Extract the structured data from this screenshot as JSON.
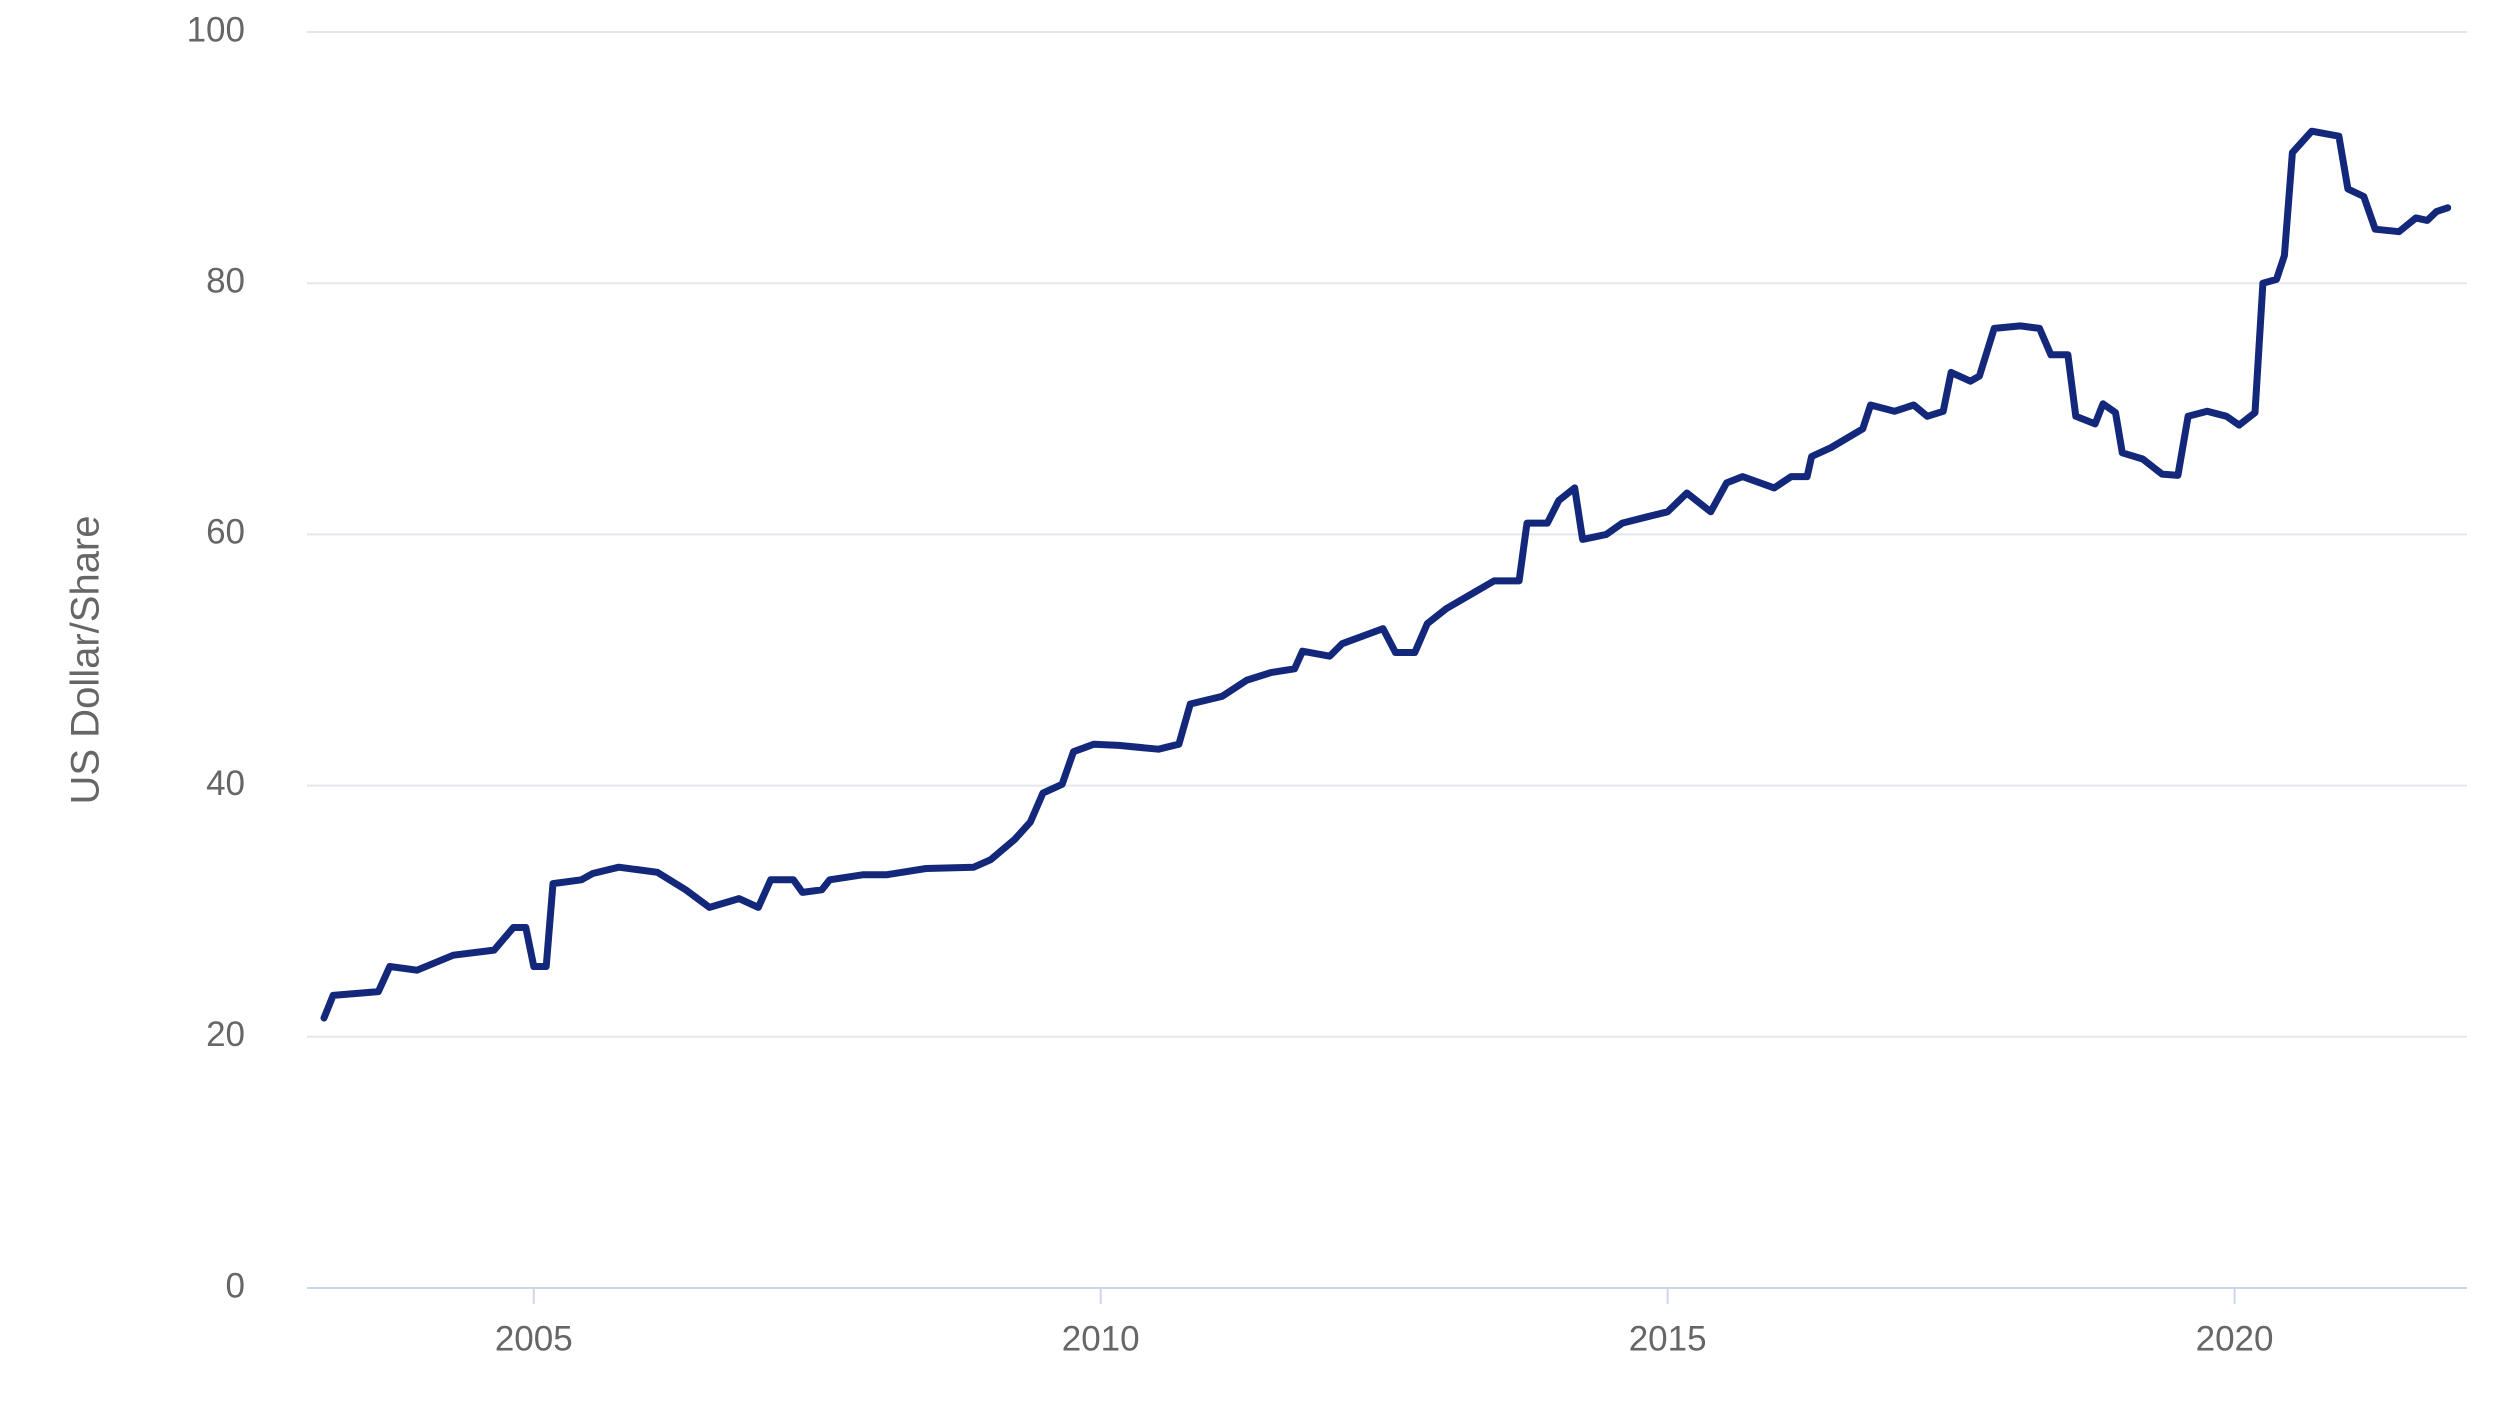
{
  "chart_data": {
    "type": "line",
    "y_label": "US Dollar/Share",
    "color": "#13287a",
    "xlim": [
      2003,
      2022.05
    ],
    "xticks": [
      2005,
      2010,
      2015,
      2020
    ],
    "ylim": [
      0,
      100
    ],
    "yticks": [
      0,
      20,
      40,
      60,
      80,
      100
    ],
    "grid": true,
    "x": [
      2003.15,
      2003.23,
      2003.63,
      2003.73,
      2003.97,
      2004.29,
      2004.65,
      2004.82,
      2004.93,
      2005.0,
      2005.11,
      2005.17,
      2005.42,
      2005.52,
      2005.75,
      2006.09,
      2006.34,
      2006.55,
      2006.81,
      2006.98,
      2007.09,
      2007.29,
      2007.37,
      2007.54,
      2007.61,
      2007.9,
      2008.11,
      2008.46,
      2008.88,
      2009.03,
      2009.24,
      2009.38,
      2009.49,
      2009.66,
      2009.76,
      2009.94,
      2010.16,
      2010.51,
      2010.69,
      2010.79,
      2011.07,
      2011.29,
      2011.5,
      2011.71,
      2011.78,
      2012.02,
      2012.13,
      2012.49,
      2012.6,
      2012.77,
      2012.88,
      2013.05,
      2013.26,
      2013.47,
      2013.69,
      2013.76,
      2013.94,
      2014.04,
      2014.18,
      2014.25,
      2014.46,
      2014.6,
      2014.82,
      2015.0,
      2015.17,
      2015.38,
      2015.52,
      2015.66,
      2015.94,
      2016.09,
      2016.23,
      2016.27,
      2016.44,
      2016.72,
      2016.79,
      2017.0,
      2017.17,
      2017.29,
      2017.43,
      2017.5,
      2017.67,
      2017.75,
      2017.88,
      2018.11,
      2018.28,
      2018.38,
      2018.53,
      2018.6,
      2018.77,
      2018.84,
      2018.95,
      2019.01,
      2019.19,
      2019.36,
      2019.5,
      2019.59,
      2019.76,
      2019.93,
      2020.04,
      2020.18,
      2020.25,
      2020.37,
      2020.44,
      2020.51,
      2020.68,
      2020.92,
      2021.0,
      2021.14,
      2021.24,
      2021.45,
      2021.6,
      2021.7,
      2021.78,
      2021.88
    ],
    "values": [
      21.5,
      23.3,
      23.6,
      25.6,
      25.3,
      26.5,
      26.9,
      28.7,
      28.7,
      25.6,
      25.6,
      32.2,
      32.5,
      33.0,
      33.5,
      33.1,
      31.7,
      30.3,
      31.0,
      30.3,
      32.5,
      32.5,
      31.5,
      31.7,
      32.5,
      32.9,
      32.9,
      33.4,
      33.5,
      34.1,
      35.7,
      37.1,
      39.4,
      40.1,
      42.7,
      43.3,
      43.2,
      42.9,
      43.3,
      46.5,
      47.1,
      48.4,
      49.0,
      49.3,
      50.7,
      50.3,
      51.3,
      52.5,
      50.6,
      50.6,
      52.9,
      54.1,
      55.2,
      56.3,
      56.3,
      60.9,
      60.9,
      62.7,
      63.7,
      59.6,
      60.0,
      60.9,
      61.4,
      61.8,
      63.3,
      61.8,
      64.1,
      64.6,
      63.7,
      64.6,
      64.6,
      66.2,
      66.9,
      68.4,
      70.3,
      69.8,
      70.3,
      69.4,
      69.8,
      72.9,
      72.2,
      72.6,
      76.4,
      76.6,
      76.4,
      74.3,
      74.3,
      69.4,
      68.8,
      70.4,
      69.7,
      66.5,
      66.0,
      64.8,
      64.7,
      69.4,
      69.8,
      69.4,
      68.7,
      69.7,
      80.0,
      80.3,
      82.2,
      90.4,
      92.1,
      91.7,
      87.5,
      86.9,
      84.3,
      84.1,
      85.2,
      85.0,
      85.7,
      86.0
    ]
  }
}
